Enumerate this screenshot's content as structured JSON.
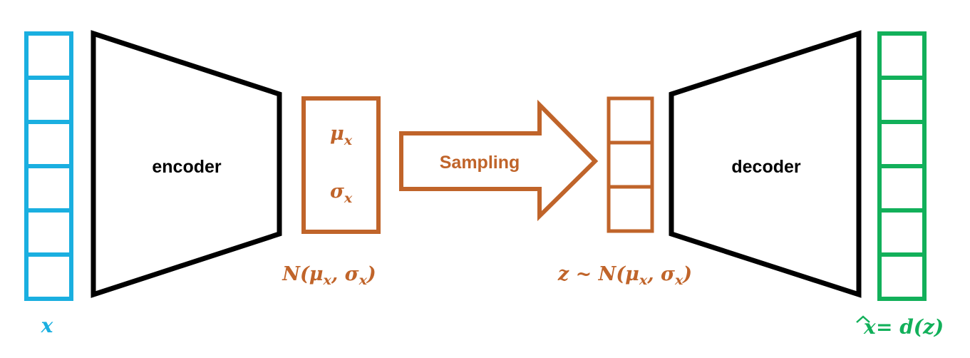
{
  "colors": {
    "input": "#1AAFE0",
    "latent": "#C0642A",
    "output": "#12B05A",
    "network": "#000000"
  },
  "input": {
    "cells": 6,
    "label": {
      "main": "x"
    }
  },
  "encoder": {
    "label": "encoder"
  },
  "distribution": {
    "mu": {
      "base": "μ",
      "sub": "x"
    },
    "sigma": {
      "base": "σ",
      "sub": "x"
    },
    "caption": {
      "prefix": "N(",
      "mu": "μ",
      "mu_sub": "x",
      "sep": ", ",
      "sigma": "σ",
      "sigma_sub": "x",
      "suffix": ")"
    }
  },
  "arrow": {
    "label": "Sampling"
  },
  "latent_vector": {
    "cells": 3,
    "caption": {
      "prefix": "z ~ N(",
      "mu": "μ",
      "mu_sub": "x",
      "sep": ", ",
      "sigma": "σ",
      "sigma_sub": "x",
      "suffix": ")"
    }
  },
  "decoder": {
    "label": "decoder"
  },
  "output": {
    "cells": 6,
    "label": {
      "hat": "x",
      "rest": " = d(z)"
    }
  }
}
